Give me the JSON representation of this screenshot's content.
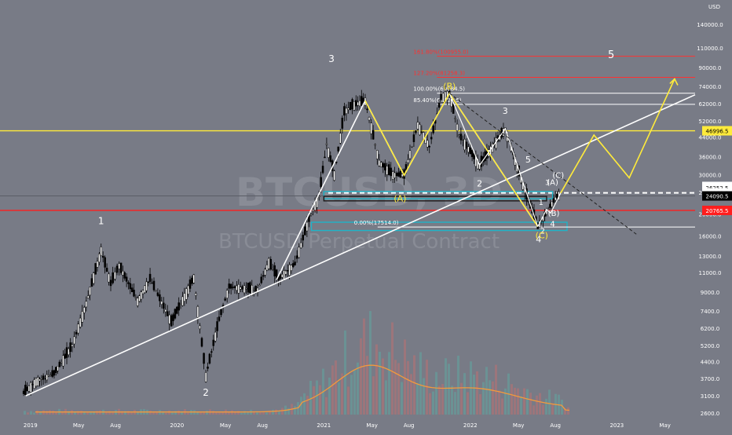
{
  "chart_data": {
    "type": "candlestick",
    "title": "",
    "watermark": {
      "symbol": "BTCUSD, 3D",
      "description": "BTCUSD Perpetual Contract"
    },
    "y_axis": {
      "label": "USD",
      "scale": "log",
      "ticks": [
        2600,
        3100,
        3700,
        4400,
        5200,
        6200,
        7400,
        9000,
        11000,
        13000,
        16000,
        20000,
        25000,
        30000,
        36000,
        44000,
        52000,
        62000,
        74000,
        90000,
        110000,
        140000
      ]
    },
    "x_axis": {
      "ticks": [
        "2019",
        "May",
        "Aug",
        "2020",
        "May",
        "Aug",
        "2021",
        "May",
        "Aug",
        "2022",
        "May",
        "Aug",
        "2023",
        "May"
      ]
    },
    "price_labels": [
      {
        "value": "46996.5",
        "color": "#ffeb3b"
      },
      {
        "value": "26551.0",
        "color": "#ffffff"
      },
      {
        "value": "26252.5",
        "color": "#ffffff"
      },
      {
        "value": "24860.5",
        "color": "#ffffff"
      },
      {
        "value": "24090.5",
        "color": "#000000"
      },
      {
        "value": "20765.5",
        "color": "#ff1e1e"
      }
    ],
    "fib_levels": [
      {
        "label": "161.80%(100955.0)",
        "value": 100955,
        "color": "#ff3030"
      },
      {
        "label": "127.20%(81258.3)",
        "value": 81258.3,
        "color": "#ff3030"
      },
      {
        "label": "100.00%(69084.5)",
        "value": 69084.5,
        "color": "#ffffff"
      },
      {
        "label": "85.40%(61606.5)",
        "value": 61606.5,
        "color": "#ffffff"
      },
      {
        "label": "0.00%(17514.0)",
        "value": 17514,
        "color": "#ffffff"
      }
    ],
    "horizontal_lines": [
      {
        "value": 46996.5,
        "color": "#ffeb3b"
      },
      {
        "value": 20765.5,
        "color": "#ff1e1e"
      }
    ],
    "wave_labels": {
      "white": [
        "1",
        "2",
        "3",
        "2",
        "3",
        "5",
        "4",
        "2",
        "1",
        "3",
        "4",
        "5"
      ],
      "yellow": [
        "(A)",
        "(B)",
        "(C)"
      ],
      "white_abc": [
        "(A)",
        "(B)",
        "(C)"
      ]
    },
    "price_path": [
      {
        "x": "2018-12-15",
        "y": 3200
      },
      {
        "x": "2019-01-15",
        "y": 3600
      },
      {
        "x": "2019-03-01",
        "y": 3900
      },
      {
        "x": "2019-04-15",
        "y": 5200
      },
      {
        "x": "2019-05-20",
        "y": 8000
      },
      {
        "x": "2019-06-26",
        "y": 13800
      },
      {
        "x": "2019-07-20",
        "y": 9800
      },
      {
        "x": "2019-08-10",
        "y": 11800
      },
      {
        "x": "2019-09-25",
        "y": 8200
      },
      {
        "x": "2019-10-26",
        "y": 10300
      },
      {
        "x": "2019-12-18",
        "y": 6600
      },
      {
        "x": "2020-02-12",
        "y": 10400
      },
      {
        "x": "2020-03-13",
        "y": 3800
      },
      {
        "x": "2020-04-15",
        "y": 6800
      },
      {
        "x": "2020-05-10",
        "y": 9500
      },
      {
        "x": "2020-07-20",
        "y": 9200
      },
      {
        "x": "2020-08-17",
        "y": 12200
      },
      {
        "x": "2020-09-10",
        "y": 10300
      },
      {
        "x": "2020-10-21",
        "y": 12000
      },
      {
        "x": "2020-11-25",
        "y": 19000
      },
      {
        "x": "2020-12-20",
        "y": 24000
      },
      {
        "x": "2021-01-08",
        "y": 41000
      },
      {
        "x": "2021-01-27",
        "y": 30000
      },
      {
        "x": "2021-02-21",
        "y": 57000
      },
      {
        "x": "2021-03-13",
        "y": 61000
      },
      {
        "x": "2021-04-14",
        "y": 64000
      },
      {
        "x": "2021-05-19",
        "y": 34000
      },
      {
        "x": "2021-06-22",
        "y": 30000
      },
      {
        "x": "2021-07-20",
        "y": 29800
      },
      {
        "x": "2021-08-23",
        "y": 50000
      },
      {
        "x": "2021-09-21",
        "y": 40000
      },
      {
        "x": "2021-10-20",
        "y": 66000
      },
      {
        "x": "2021-11-10",
        "y": 69000
      },
      {
        "x": "2021-12-04",
        "y": 45000
      },
      {
        "x": "2022-01-24",
        "y": 33000
      },
      {
        "x": "2022-03-29",
        "y": 48000
      },
      {
        "x": "2022-05-12",
        "y": 27000
      },
      {
        "x": "2022-06-18",
        "y": 17600
      },
      {
        "x": "2022-07-10",
        "y": 20500
      },
      {
        "x": "2022-08-01",
        "y": 23500
      },
      {
        "x": "2022-08-14",
        "y": 24800
      }
    ],
    "projection_path": [
      {
        "x": "2022-08-14",
        "y": 24800
      },
      {
        "x": "2022-11-05",
        "y": 45000
      },
      {
        "x": "2023-02-01",
        "y": 29000
      },
      {
        "x": "2023-05-25",
        "y": 80000
      }
    ],
    "volume_profile": "orange moving-average line over translucent volume bars"
  }
}
